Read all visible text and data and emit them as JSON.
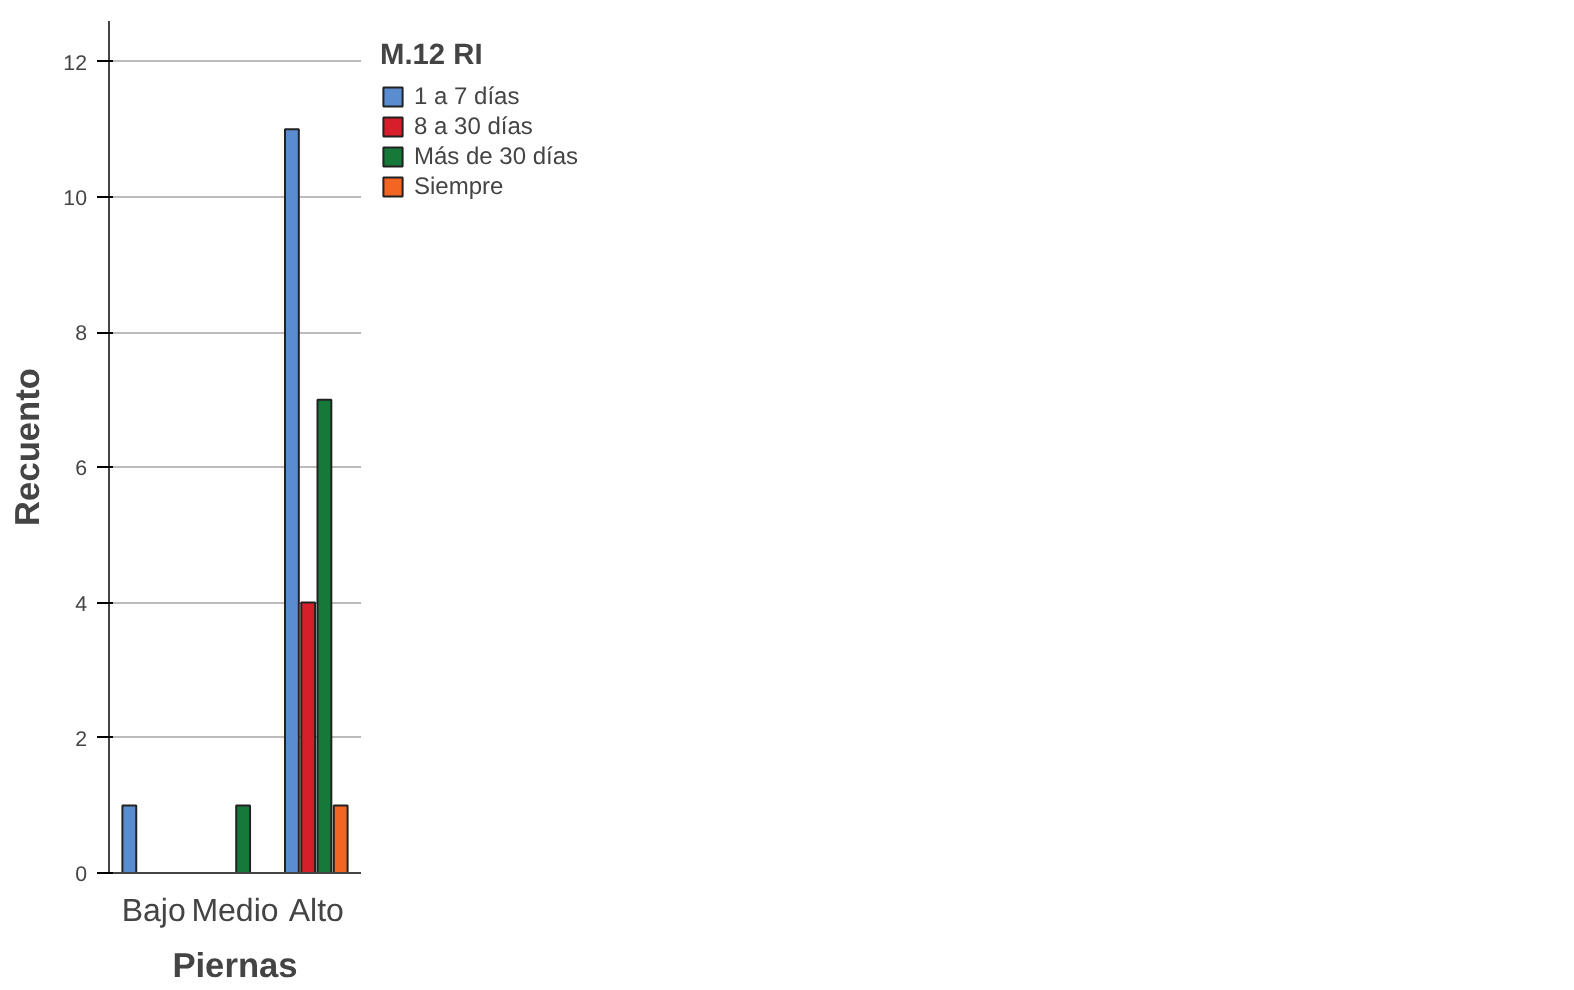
{
  "chart_data": {
    "type": "bar",
    "xlabel": "Piernas",
    "ylabel": "Recuento",
    "legend_title": "M.12 RI",
    "categories": [
      "Bajo",
      "Medio",
      "Alto"
    ],
    "series": [
      {
        "name": "1 a 7 días",
        "color": "#5a8dd0",
        "values": [
          1,
          null,
          11
        ]
      },
      {
        "name": "8 a 30 días",
        "color": "#d71f2b",
        "values": [
          null,
          null,
          4
        ]
      },
      {
        "name": "Más de 30 días",
        "color": "#16793a",
        "values": [
          null,
          1,
          7
        ]
      },
      {
        "name": "Siempre",
        "color": "#f26522",
        "values": [
          null,
          null,
          1
        ]
      }
    ],
    "ylim": [
      0,
      12.6
    ],
    "yticks": [
      0,
      2,
      4,
      6,
      8,
      10,
      12
    ],
    "grid": "y",
    "legend": "top right"
  }
}
